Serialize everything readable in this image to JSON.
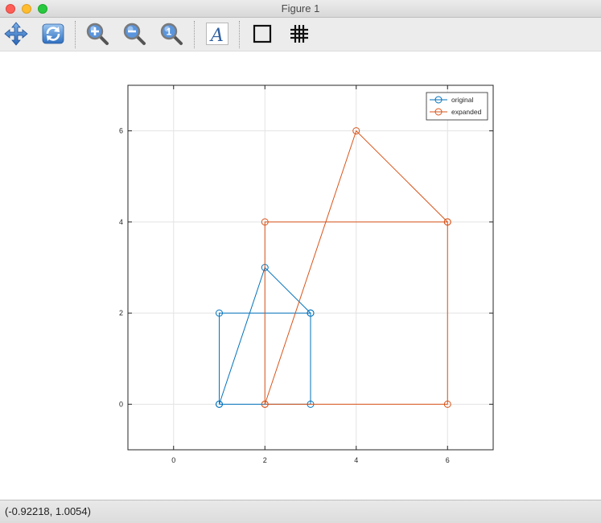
{
  "window": {
    "title": "Figure 1"
  },
  "toolbar": {
    "buttons": [
      {
        "name": "pan-button",
        "icon": "pan-icon"
      },
      {
        "name": "rotate-button",
        "icon": "rotate-icon"
      },
      {
        "name": "zoom-in-button",
        "icon": "zoom-in-icon"
      },
      {
        "name": "zoom-out-button",
        "icon": "zoom-out-icon"
      },
      {
        "name": "zoom-reset-button",
        "icon": "zoom-original-icon",
        "glyph": "1"
      },
      {
        "name": "insert-text-button",
        "icon": "text-icon",
        "glyph": "A"
      },
      {
        "name": "toggle-box-button",
        "icon": "box-icon"
      },
      {
        "name": "toggle-grid-button",
        "icon": "grid-icon"
      }
    ]
  },
  "status": {
    "text": "(-0.92218, 1.0054)"
  },
  "chart_data": {
    "type": "line",
    "xlim": [
      -1,
      7
    ],
    "ylim": [
      -1,
      7
    ],
    "xticks": [
      0,
      2,
      4,
      6
    ],
    "yticks": [
      0,
      2,
      4,
      6
    ],
    "xtick_labels": [
      "0",
      "2",
      "4",
      "6"
    ],
    "ytick_labels": [
      "0",
      "2",
      "4",
      "6"
    ],
    "grid": true,
    "box": true,
    "legend_position": "top-right",
    "marker": "circle",
    "series": [
      {
        "name": "original",
        "color": "#0072bd",
        "x": [
          1,
          3,
          3,
          1,
          1,
          2,
          3
        ],
        "y": [
          0,
          0,
          2,
          2,
          0,
          3,
          2
        ]
      },
      {
        "name": "expanded",
        "color": "#d95319",
        "x": [
          2,
          6,
          6,
          2,
          2,
          4,
          6
        ],
        "y": [
          0,
          0,
          4,
          4,
          0,
          6,
          4
        ]
      }
    ]
  }
}
